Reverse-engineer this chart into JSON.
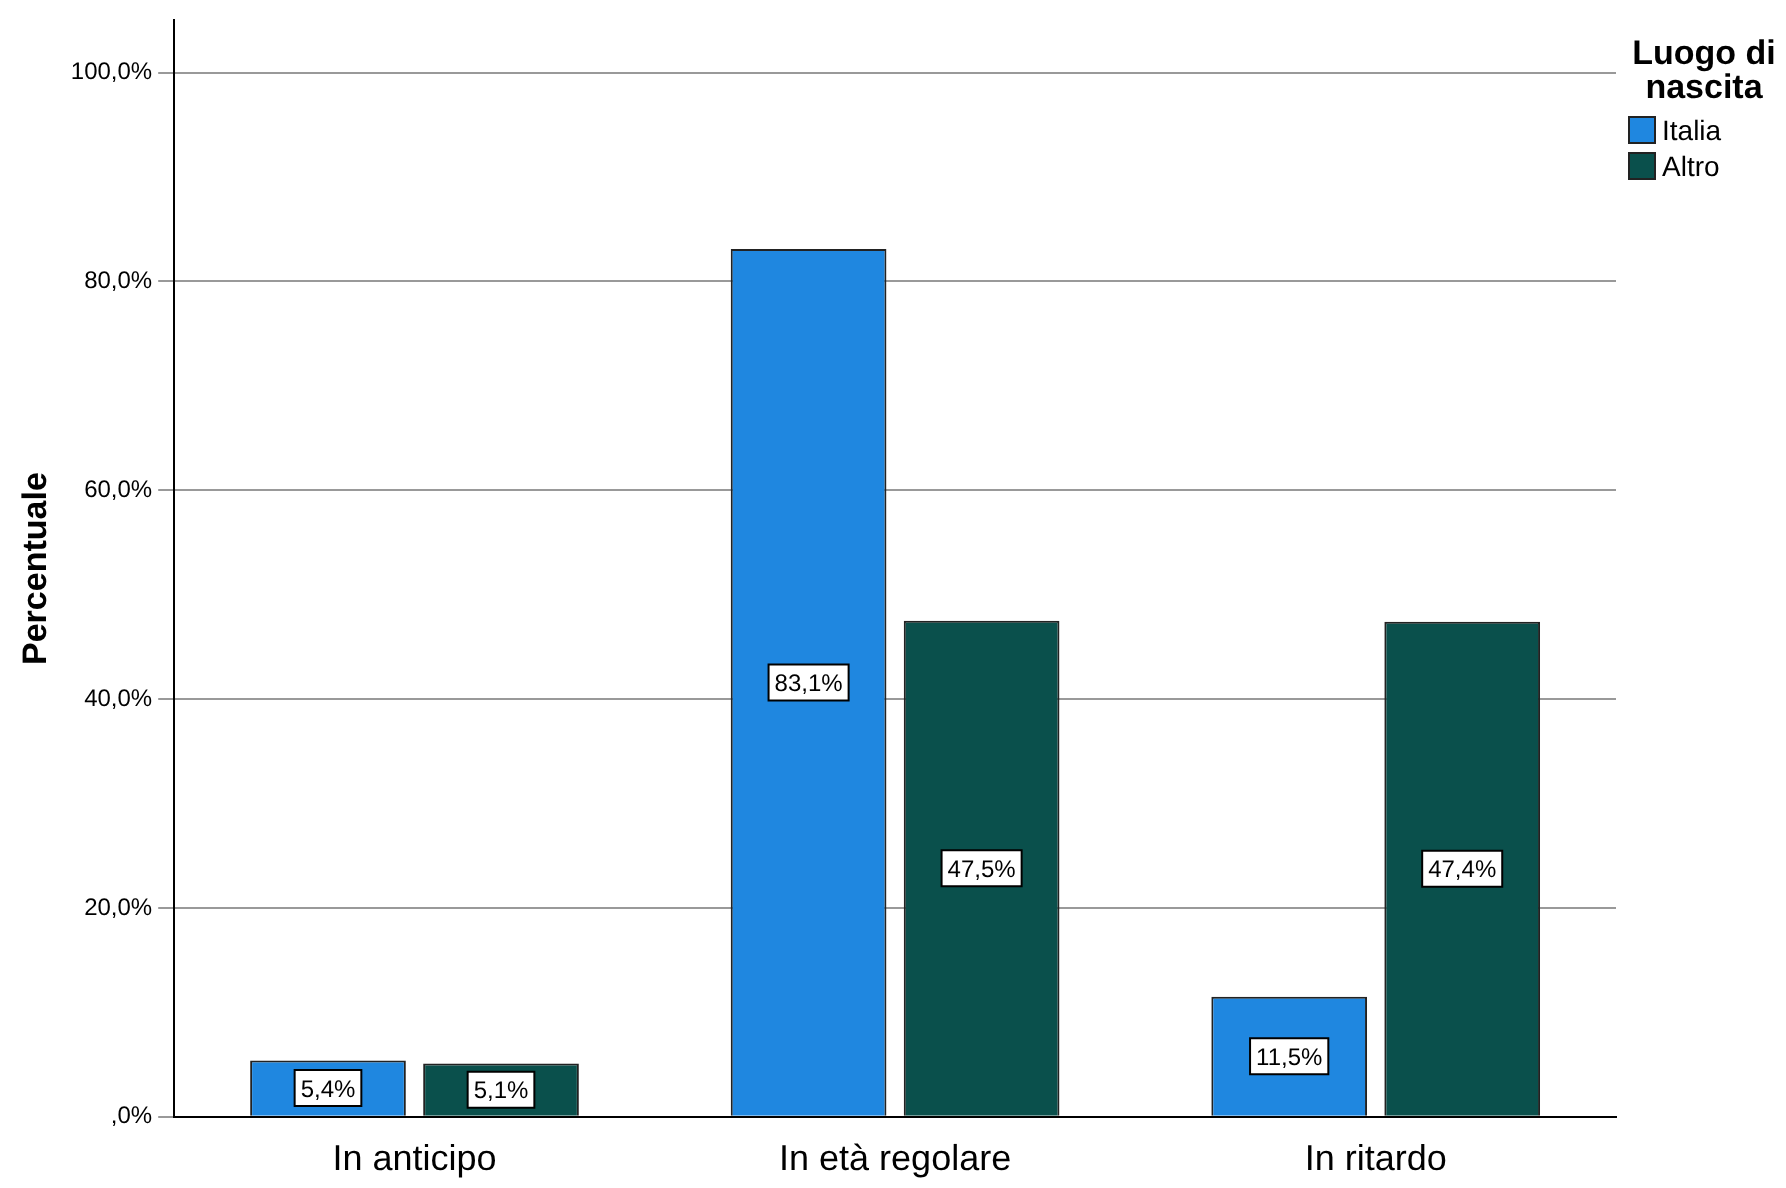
{
  "chart_data": {
    "type": "bar",
    "ylabel": "Percentuale",
    "legend_title": "Luogo di nascita",
    "legend": "top right",
    "grid": "y",
    "categories": [
      "In anticipo",
      "In età regolare",
      "In ritardo"
    ],
    "series": [
      {
        "name": "Italia",
        "color": "#1f87e0",
        "values": [
          5.4,
          83.1,
          11.5
        ],
        "value_labels": [
          "5,4%",
          "83,1%",
          "11,5%"
        ]
      },
      {
        "name": "Altro",
        "color": "#0a504c",
        "values": [
          5.1,
          47.5,
          47.4
        ],
        "value_labels": [
          "5,1%",
          "47,5%",
          "47,4%"
        ]
      }
    ],
    "ylim": [
      0,
      105
    ],
    "yticks": [
      {
        "value": 0,
        "label": ",0%"
      },
      {
        "value": 20,
        "label": "20,0%"
      },
      {
        "value": 40,
        "label": "40,0%"
      },
      {
        "value": 60,
        "label": "60,0%"
      },
      {
        "value": 80,
        "label": "80,0%"
      },
      {
        "value": 100,
        "label": "100,0%"
      }
    ]
  }
}
